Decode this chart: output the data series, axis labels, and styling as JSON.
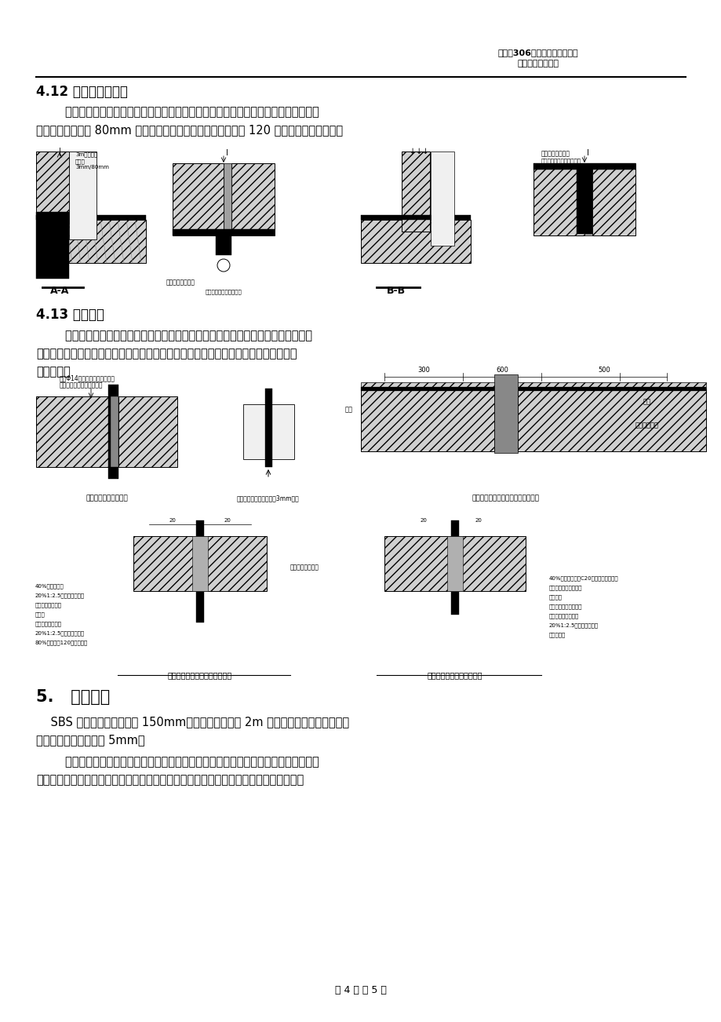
{
  "page_width": 9.2,
  "page_height": 13.02,
  "bg_color": "#ffffff",
  "header_line1": "解放军306医院综合医疗楼工程",
  "header_line2": "地下防水施工方案",
  "footer_text": "第 4 页 共 5 页",
  "section_412_title": "4.12 后浇带防水施工",
  "section_412_text1": "        底板后浇带处水平防水做法采用遇水膨胀止水条。墙体后浇带采用钢板止水带，在外",
  "section_412_text2": "墙后浇带外侧焊接 80mm 厚预制板，在预制板上做防水，再砌 120 保护墙（详见下图）。",
  "section_413_title": "4.13 施工要点",
  "section_413_text1": "        地下室底板及地梁应一次整体浇筑至地梁顶面以上。施工缝留置时，止水钢板连续",
  "section_413_text2": "布置，水平缝和垂直缝连续交圈，接口处采用双面焊，保证焊缝密实。止水钢板开口朝",
  "section_413_text3": "向迎水面。",
  "section_5_title": "5.   质量控制",
  "section_5_text1": "    SBS 卷材防水施工搭接为 150mm。找平层平整度用 2m 靠尺和塞尺检查；面层与直",
  "section_5_text2": "尺的最大空隙不得大于 5mm。",
  "section_5_text3": "        卷材与基层粘贴牢固，封口（收口）严密，无皱褶、翘边等现象。并符合实际及施工",
  "section_5_text4": "要求。底板、外立墙应严格控制含水率，以保证防水层的正常施工。如遇雨天或五级风以",
  "diag2_label_left": "外牙墙钢板安装示意图",
  "diag2_label_left2": "钢板上水管加工示意图（3mm厚）",
  "diag2_label_right1": "遇水膨胀止水条",
  "diag2_label_right2": "附加卷材防水",
  "diag2_label_right_title": "基础底板后浇带防水施工做法示意图",
  "diag3_label_left": "立墙、顶板变形缝防水卷材镶法",
  "diag3_label_right": "底板变形缝处防水卷材镶法",
  "diag1_label_aa": "A-A",
  "diag1_label_bb": "B-B",
  "diag1_label_aa_detail": "后浇带防水示意图\n（钢板止水，底板按夯）",
  "diag1_label_bb_detail": "后浇带防水示意图\n（外墙按板，无化后板夯）"
}
